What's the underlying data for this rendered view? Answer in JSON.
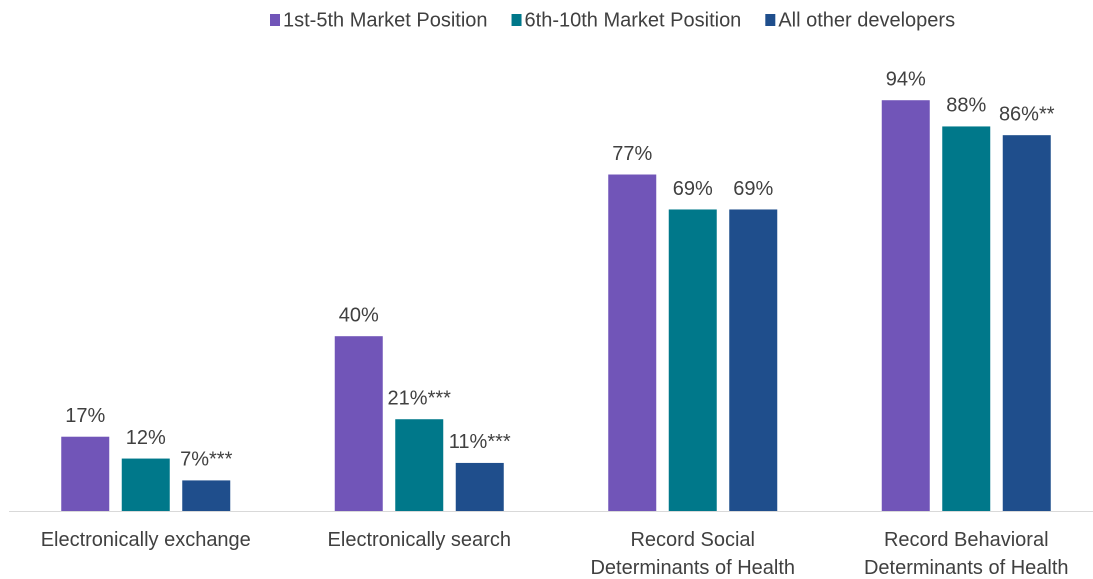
{
  "chart_data": {
    "type": "bar",
    "categories": [
      "Electronically exchange",
      "Electronically search",
      "Record Social\nDeterminants of Health",
      "Record Behavioral\nDeterminants of Health"
    ],
    "series": [
      {
        "name": "1st-5th Market Position",
        "color": "#7155b8",
        "values": [
          17,
          40,
          77,
          94
        ],
        "value_labels": [
          "17%",
          "40%",
          "77%",
          "94%"
        ]
      },
      {
        "name": "6th-10th Market Position",
        "color": "#00788a",
        "values": [
          12,
          21,
          69,
          88
        ],
        "value_labels": [
          "12%",
          "21%***",
          "69%",
          "88%"
        ]
      },
      {
        "name": "All other developers",
        "color": "#1f4e8c",
        "values": [
          7,
          11,
          69,
          86
        ],
        "value_labels": [
          "7%***",
          "11%***",
          "69%",
          "86%**"
        ]
      }
    ],
    "ylim": [
      0,
      100
    ],
    "legend": "top"
  }
}
